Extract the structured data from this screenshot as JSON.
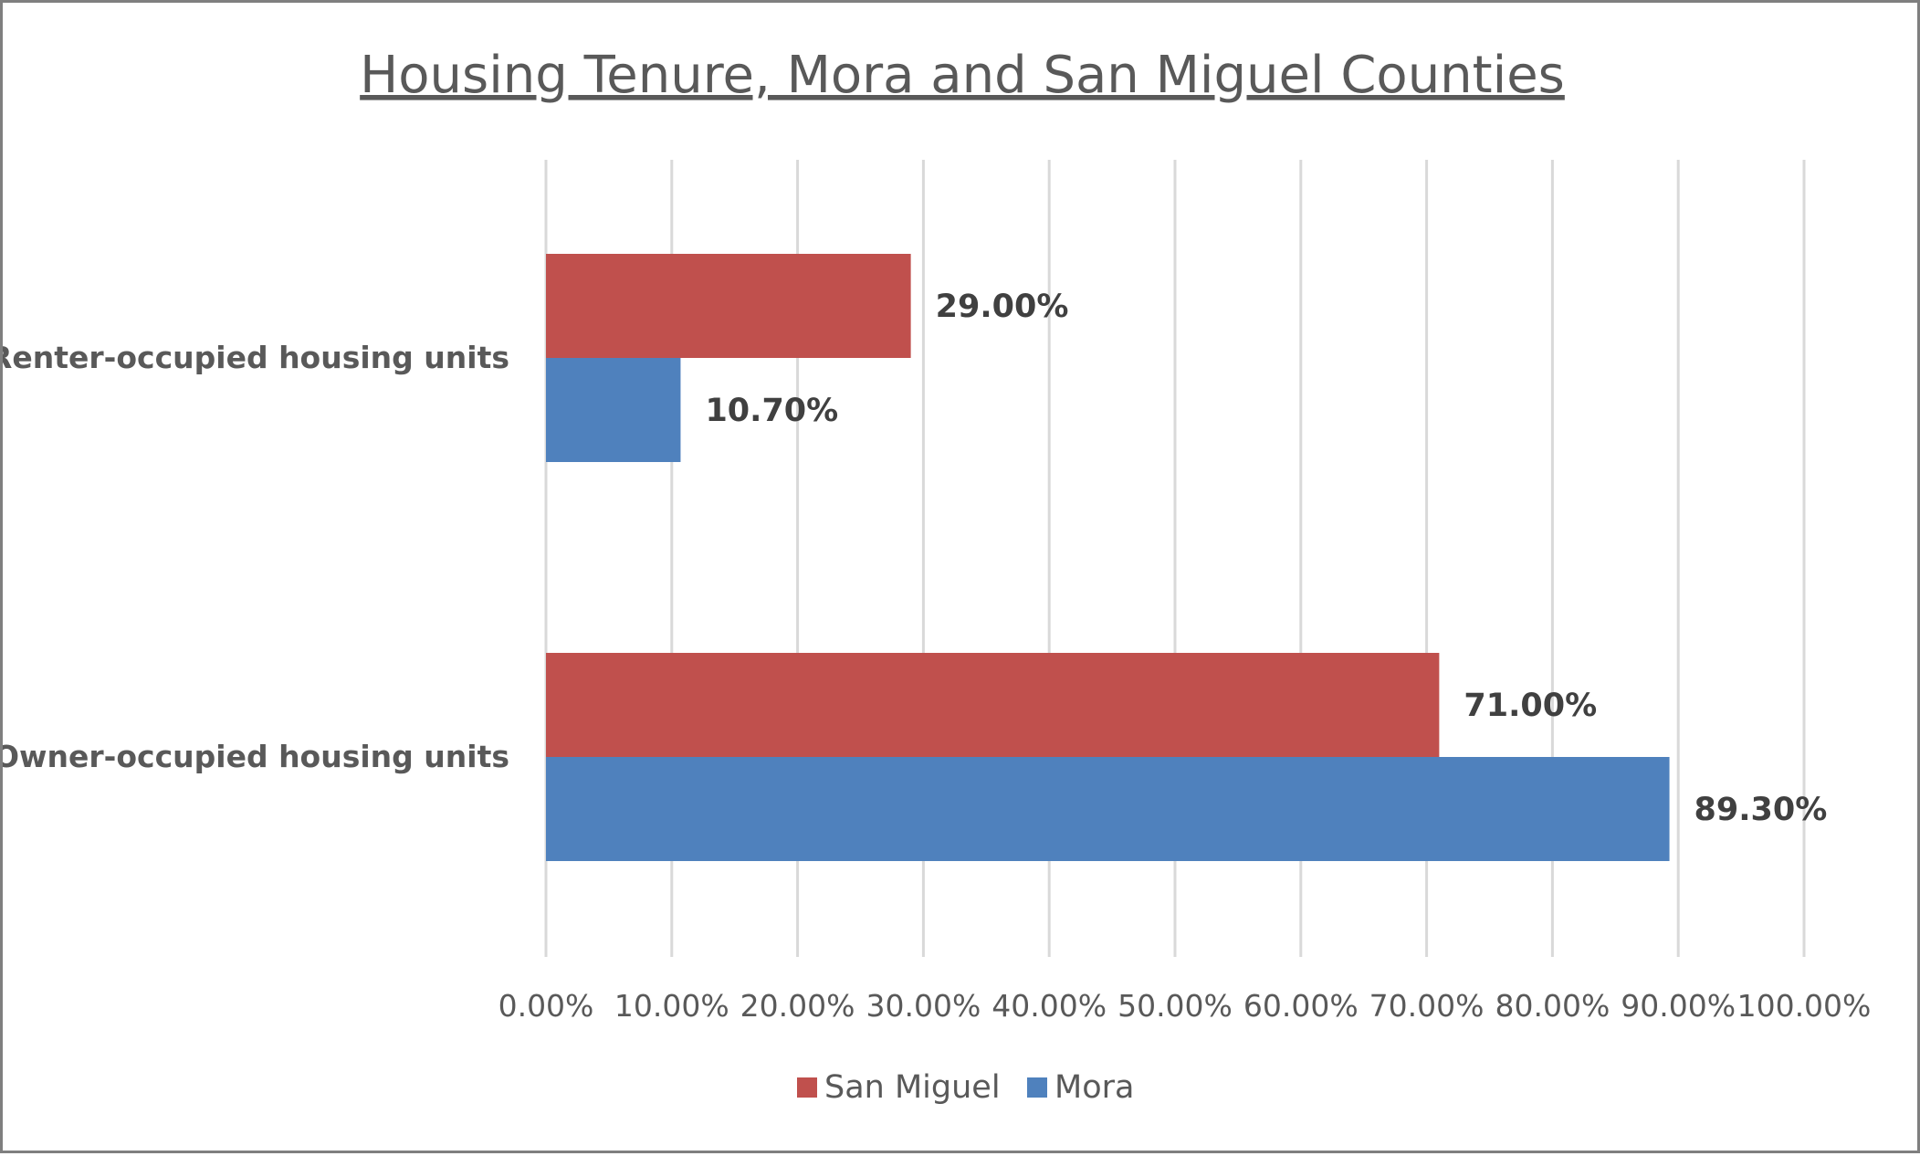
{
  "chart_data": {
    "type": "bar",
    "orientation": "horizontal",
    "title": "Housing Tenure, Mora and San Miguel Counties",
    "categories": [
      "Renter-occupied housing units",
      "Owner-occupied housing units"
    ],
    "series": [
      {
        "name": "San Miguel",
        "values": [
          29.0,
          71.0
        ],
        "labels": [
          "29.00%",
          "71.00%"
        ],
        "color": "#c0504d"
      },
      {
        "name": "Mora",
        "values": [
          10.7,
          89.3
        ],
        "labels": [
          "10.70%",
          "89.30%"
        ],
        "color": "#4f81bd"
      }
    ],
    "xlim": [
      0,
      100
    ],
    "xticks": [
      "0.00%",
      "10.00%",
      "20.00%",
      "30.00%",
      "40.00%",
      "50.00%",
      "60.00%",
      "70.00%",
      "80.00%",
      "90.00%",
      "100.00%"
    ],
    "grid": true,
    "legend": "bottom"
  }
}
